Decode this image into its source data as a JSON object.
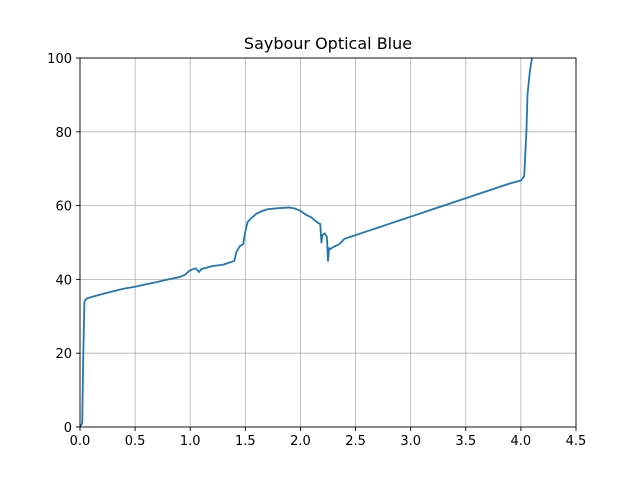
{
  "chart_data": {
    "type": "line",
    "title": "Saybour Optical Blue",
    "xlabel": "",
    "ylabel": "",
    "xlim": [
      0,
      4.5
    ],
    "ylim": [
      0,
      100
    ],
    "xticks": [
      0.0,
      0.5,
      1.0,
      1.5,
      2.0,
      2.5,
      3.0,
      3.5,
      4.0,
      4.5
    ],
    "xtick_labels": [
      "0.0",
      "0.5",
      "1.0",
      "1.5",
      "2.0",
      "2.5",
      "3.0",
      "3.5",
      "4.0",
      "4.5"
    ],
    "yticks": [
      0,
      20,
      40,
      60,
      80,
      100
    ],
    "ytick_labels": [
      "0",
      "20",
      "40",
      "60",
      "80",
      "100"
    ],
    "grid": true,
    "line_color": "#1f77b4",
    "series": [
      {
        "x": [
          0.0,
          0.02,
          0.03,
          0.04,
          0.05,
          0.06,
          0.1,
          0.2,
          0.3,
          0.4,
          0.5,
          0.6,
          0.7,
          0.8,
          0.9,
          0.95,
          1.0,
          1.05,
          1.08,
          1.1,
          1.2,
          1.3,
          1.4,
          1.42,
          1.45,
          1.48,
          1.5,
          1.52,
          1.55,
          1.57,
          1.6,
          1.65,
          1.7,
          1.8,
          1.9,
          1.95,
          2.0,
          2.05,
          2.1,
          2.15,
          2.18,
          2.19,
          2.2,
          2.22,
          2.24,
          2.25,
          2.26,
          2.27,
          2.3,
          2.35,
          2.4,
          2.5,
          2.6,
          2.7,
          2.8,
          2.9,
          3.0,
          3.1,
          3.2,
          3.3,
          3.4,
          3.5,
          3.6,
          3.7,
          3.8,
          3.9,
          4.0,
          4.03,
          4.05,
          4.06,
          4.08,
          4.1
        ],
        "y": [
          0.0,
          1.0,
          20.0,
          34.0,
          34.5,
          34.8,
          35.2,
          36.0,
          36.8,
          37.5,
          38.0,
          38.7,
          39.3,
          40.0,
          40.6,
          41.2,
          42.5,
          43.0,
          42.0,
          42.8,
          43.6,
          44.0,
          45.0,
          47.5,
          49.0,
          49.5,
          53.0,
          55.5,
          56.5,
          57.0,
          57.8,
          58.5,
          59.0,
          59.3,
          59.5,
          59.2,
          58.6,
          57.5,
          56.8,
          55.5,
          55.0,
          50.0,
          52.0,
          52.5,
          51.5,
          45.0,
          48.5,
          48.2,
          48.8,
          49.5,
          51.0,
          52.0,
          53.0,
          54.0,
          55.0,
          56.0,
          57.0,
          58.0,
          59.0,
          60.0,
          61.0,
          62.0,
          63.0,
          64.0,
          65.0,
          66.0,
          66.8,
          68.0,
          80.0,
          90.0,
          96.0,
          100.0
        ]
      }
    ]
  }
}
